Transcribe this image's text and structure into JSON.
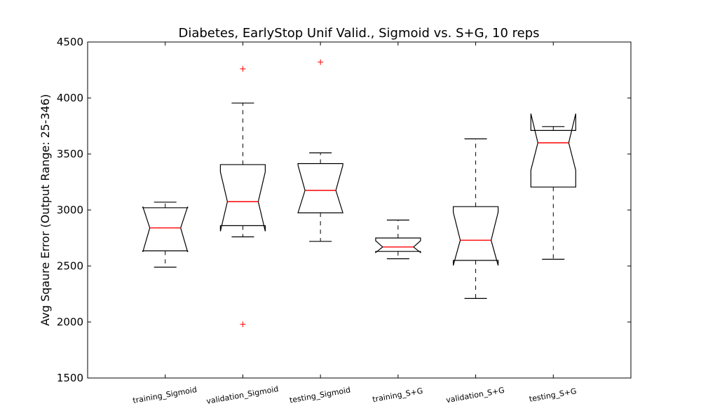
{
  "chart_data": {
    "type": "box",
    "title": "Diabetes, EarlyStop Unif Valid., Sigmoid vs. S+G, 10 reps",
    "xlabel": "",
    "ylabel": "Avg Sqaure Error (Output Range: 25-346)",
    "ylim": [
      1500,
      4500
    ],
    "yticks": [
      "1500",
      "2000",
      "2500",
      "3000",
      "3500",
      "4000",
      "4500"
    ],
    "grid": false,
    "notched": true,
    "colors": {
      "box": "#000000",
      "median": "#ff0000",
      "outlier": "#ff0000"
    },
    "categories": [
      "training_Sigmoid",
      "validation_Sigmoid",
      "testing_Sigmoid",
      "training_S+G",
      "validation_S+G",
      "testing_S+G"
    ],
    "boxes": [
      {
        "whisker_low": 2490,
        "q1": 2635,
        "median": 2840,
        "q3": 3020,
        "whisker_high": 3070,
        "notch_low": 2625,
        "notch_high": 3030,
        "outliers": []
      },
      {
        "whisker_low": 2760,
        "q1": 2860,
        "median": 3075,
        "q3": 3405,
        "whisker_high": 3955,
        "notch_low": 2810,
        "notch_high": 3340,
        "outliers": [
          4260,
          1980
        ]
      },
      {
        "whisker_low": 2720,
        "q1": 2975,
        "median": 3175,
        "q3": 3415,
        "whisker_high": 3510,
        "notch_low": 2975,
        "notch_high": 3400,
        "outliers": [
          4320
        ]
      },
      {
        "whisker_low": 2565,
        "q1": 2630,
        "median": 2670,
        "q3": 2750,
        "whisker_high": 2910,
        "notch_low": 2620,
        "notch_high": 2725,
        "outliers": []
      },
      {
        "whisker_low": 2210,
        "q1": 2550,
        "median": 2730,
        "q3": 3030,
        "whisker_high": 3635,
        "notch_low": 2505,
        "notch_high": 2980,
        "outliers": []
      },
      {
        "whisker_low": 2560,
        "q1": 3205,
        "median": 3600,
        "q3": 3710,
        "whisker_high": 3745,
        "notch_low": 3355,
        "notch_high": 3860,
        "outliers": []
      }
    ]
  }
}
